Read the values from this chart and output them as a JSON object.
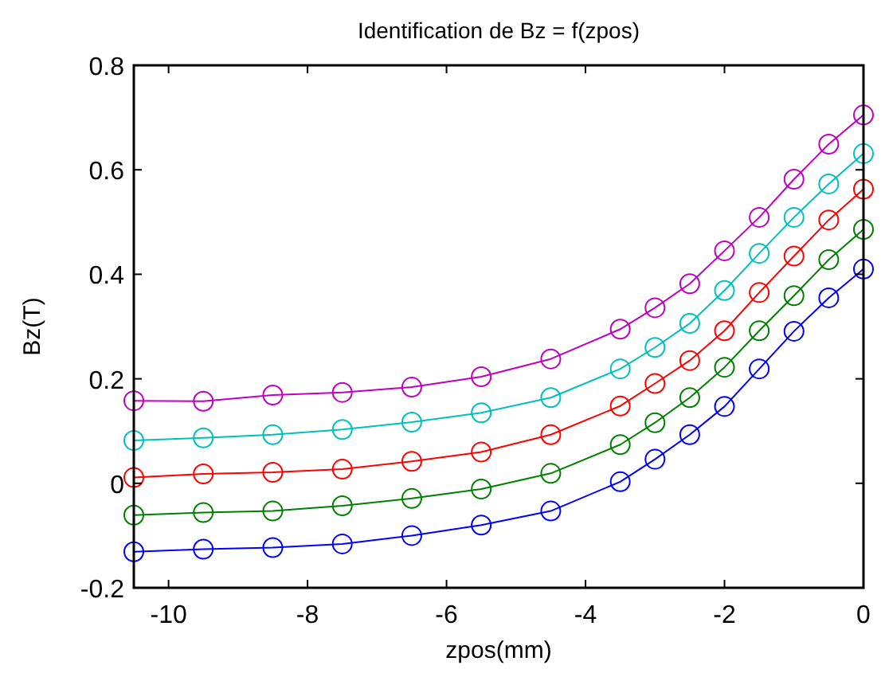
{
  "chart_data": {
    "type": "line",
    "title": "Identification de Bz = f(zpos)",
    "xlabel": "zpos(mm)",
    "ylabel": "Bz(T)",
    "x": [
      -10.5,
      -9.5,
      -8.5,
      -7.5,
      -6.5,
      -5.5,
      -4.5,
      -3.5,
      -3,
      -2.5,
      -2,
      -1.5,
      -1,
      -0.5,
      0
    ],
    "series": [
      {
        "color": "#bf00bf",
        "values": [
          0.158,
          0.157,
          0.169,
          0.174,
          0.184,
          0.204,
          0.238,
          0.295,
          0.336,
          0.382,
          0.445,
          0.509,
          0.582,
          0.649,
          0.705
        ]
      },
      {
        "color": "#00bfbf",
        "values": [
          0.082,
          0.087,
          0.093,
          0.103,
          0.117,
          0.135,
          0.164,
          0.219,
          0.26,
          0.306,
          0.369,
          0.44,
          0.509,
          0.573,
          0.631
        ]
      },
      {
        "color": "#ff0000",
        "values": [
          0.011,
          0.018,
          0.021,
          0.027,
          0.042,
          0.06,
          0.093,
          0.148,
          0.191,
          0.235,
          0.292,
          0.365,
          0.435,
          0.504,
          0.563
        ]
      },
      {
        "color": "#008000",
        "values": [
          -0.061,
          -0.056,
          -0.053,
          -0.043,
          -0.029,
          -0.011,
          0.019,
          0.074,
          0.116,
          0.164,
          0.222,
          0.292,
          0.359,
          0.428,
          0.486
        ]
      },
      {
        "color": "#0000ff",
        "values": [
          -0.131,
          -0.126,
          -0.123,
          -0.116,
          -0.1,
          -0.08,
          -0.053,
          0.003,
          0.046,
          0.093,
          0.147,
          0.219,
          0.291,
          0.355,
          0.41
        ]
      }
    ],
    "xlim": [
      -10.5,
      0
    ],
    "xticks": [
      -10,
      -8,
      -6,
      -4,
      -2,
      0
    ],
    "ylim": [
      -0.2,
      0.8
    ],
    "yticks": [
      -0.2,
      0,
      0.2,
      0.4,
      0.6,
      0.8
    ],
    "marker": "circle",
    "line_style": "solid"
  }
}
